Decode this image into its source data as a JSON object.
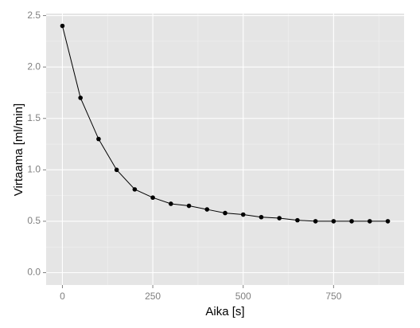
{
  "chart_data": {
    "type": "line",
    "x_label": "Aika [s]",
    "y_label": "Virtaama [ml/min]",
    "x": [
      0,
      50,
      100,
      150,
      200,
      250,
      300,
      350,
      400,
      450,
      500,
      550,
      600,
      650,
      700,
      750,
      800,
      850,
      900
    ],
    "series": [
      {
        "color": "#000000",
        "values": [
          2.4,
          1.7,
          1.3,
          1.0,
          0.81,
          0.73,
          0.67,
          0.65,
          0.615,
          0.58,
          0.565,
          0.54,
          0.53,
          0.51,
          0.5,
          0.5,
          0.5,
          0.5,
          0.5
        ]
      }
    ],
    "xlim": [
      -45,
      945
    ],
    "xticks": [
      0,
      250,
      500,
      750
    ],
    "ylim": [
      -0.12,
      2.52
    ],
    "yticks": [
      {
        "value": 0,
        "label": "0.0"
      },
      0.5,
      {
        "value": 1,
        "label": "1.0"
      },
      1.5,
      {
        "value": 2,
        "label": "2.0"
      },
      2.5
    ],
    "grid": true
  }
}
